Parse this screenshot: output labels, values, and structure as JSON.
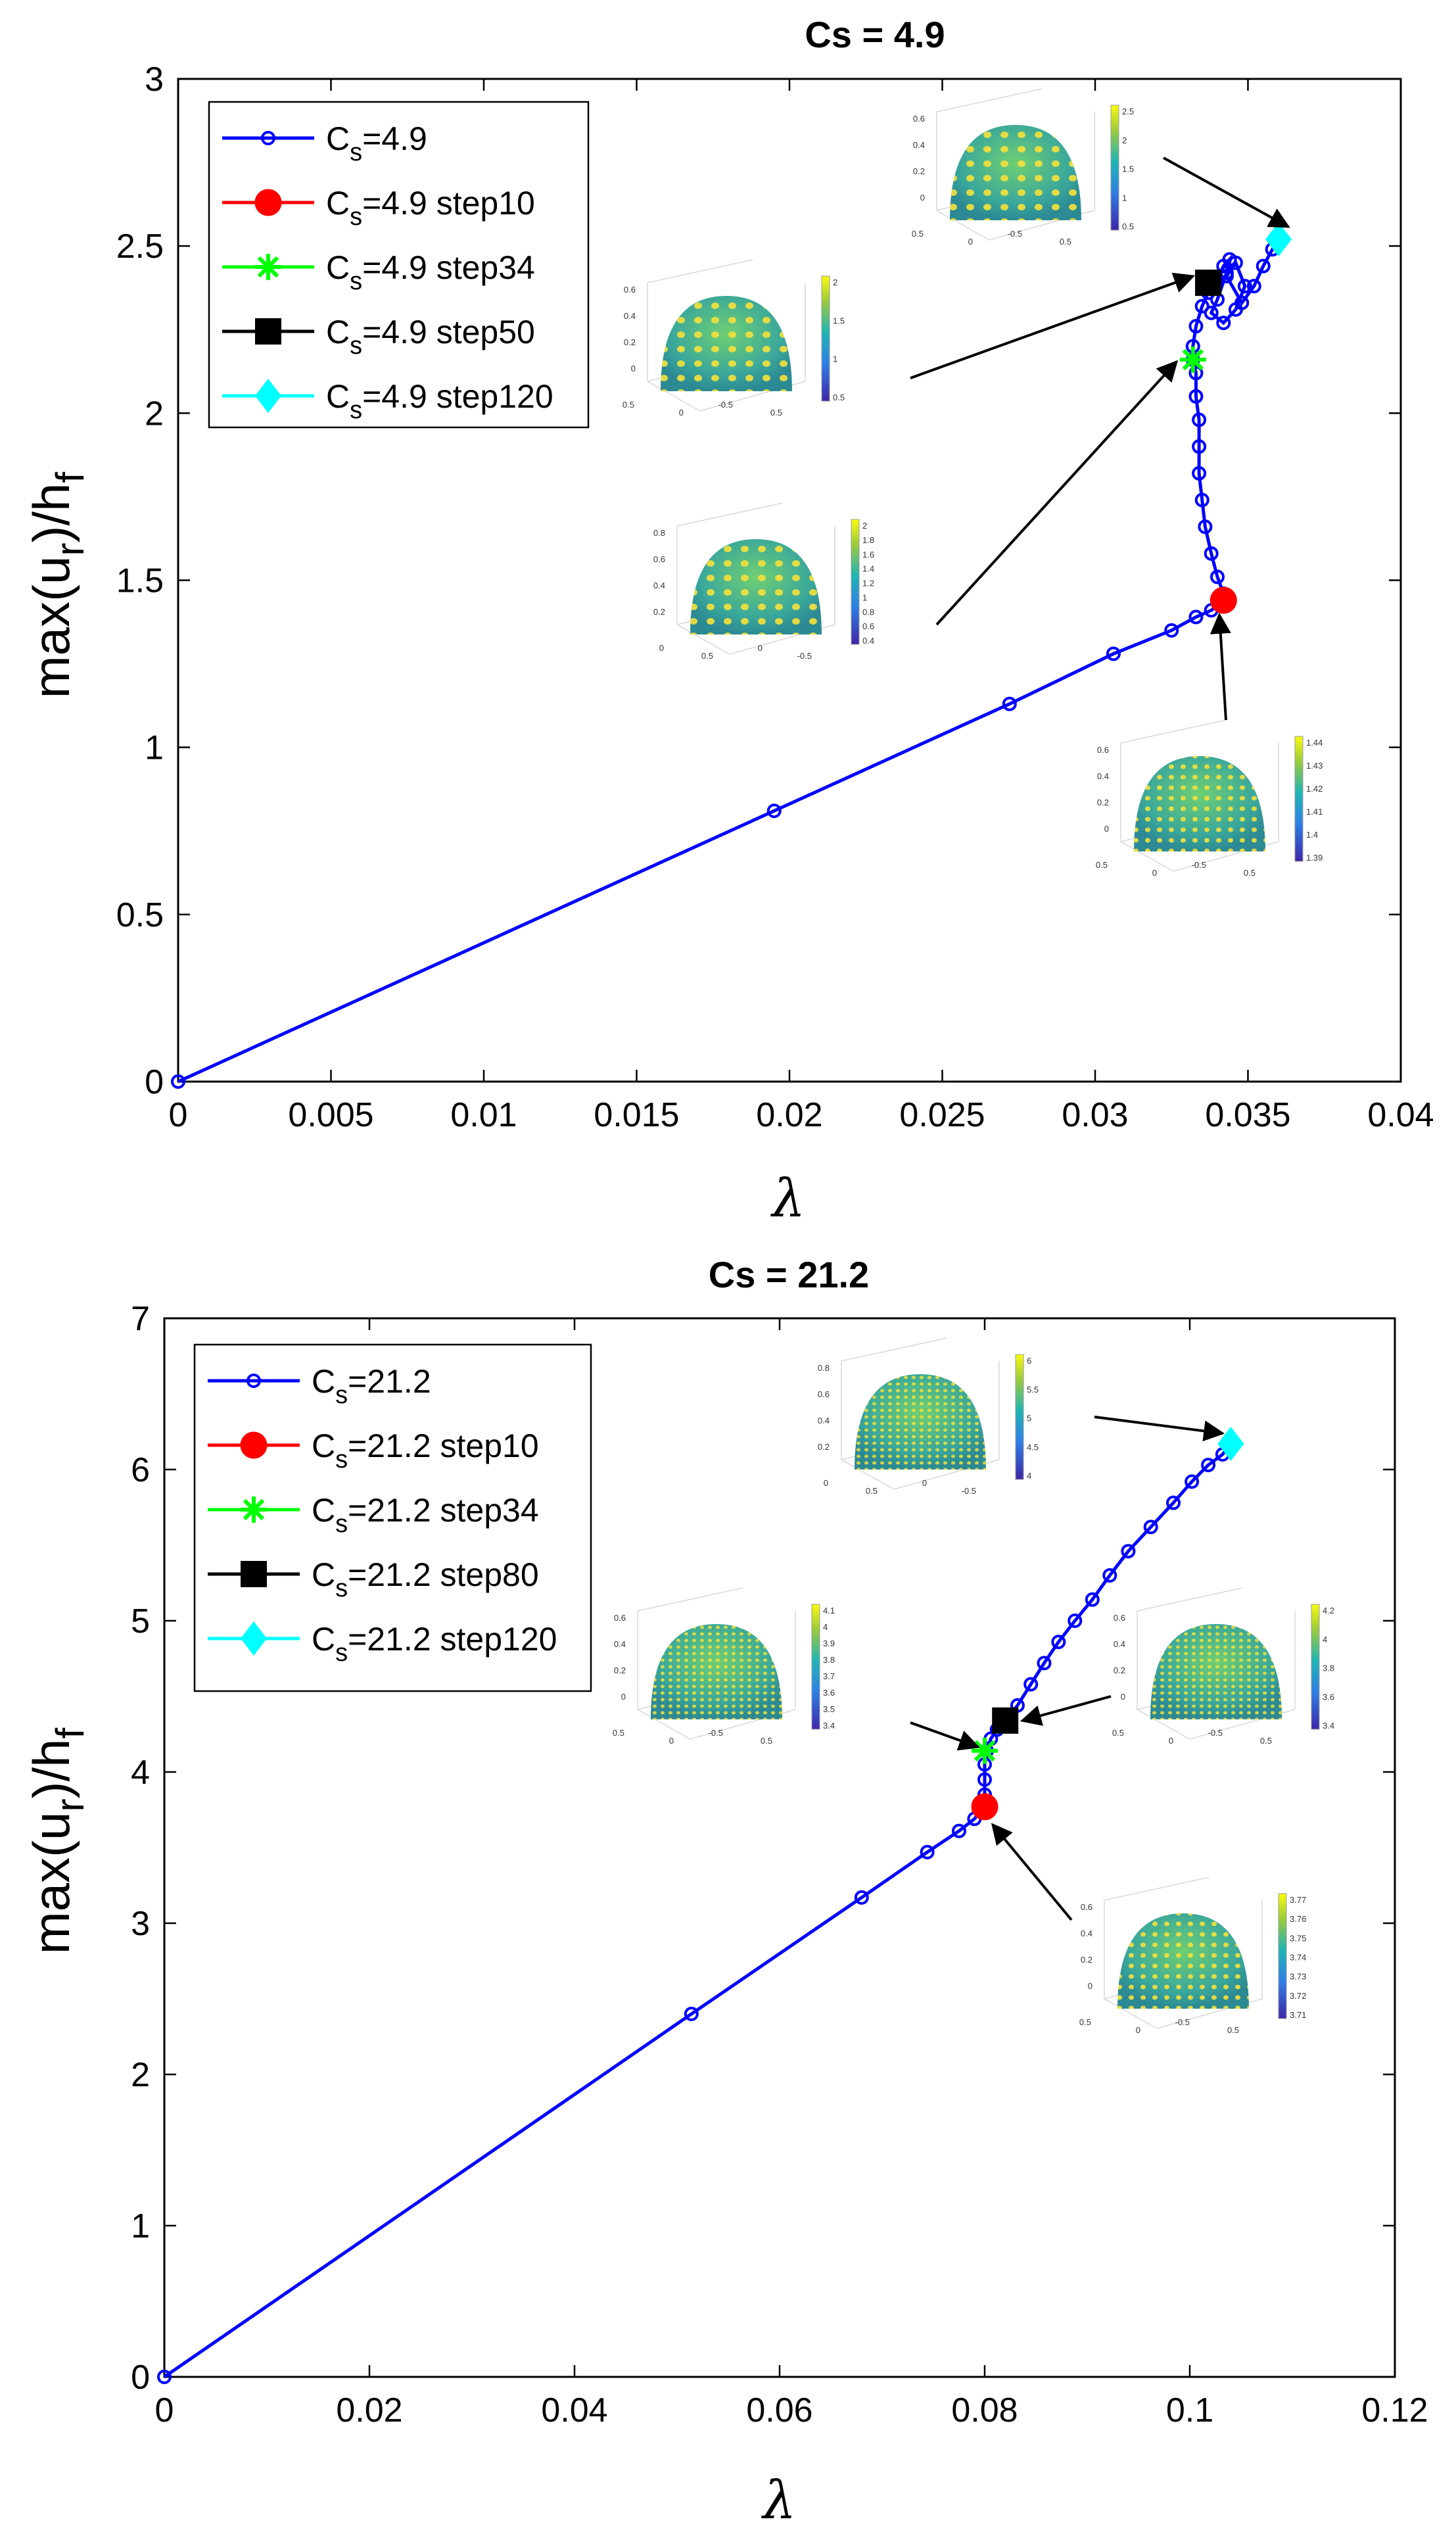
{
  "chart_data": [
    {
      "type": "line",
      "title": "Cs = 4.9",
      "xlabel": "λ",
      "ylabel_main": "max(u",
      "ylabel_sub1": "r",
      "ylabel_mid": ")/h",
      "ylabel_sub2": "f",
      "xlim": [
        0,
        0.04
      ],
      "ylim": [
        0,
        3
      ],
      "xticks": [
        0,
        0.005,
        0.01,
        0.015,
        0.02,
        0.025,
        0.03,
        0.035,
        0.04
      ],
      "xtick_labels": [
        "0",
        "0.005",
        "0.01",
        "0.015",
        "0.02",
        "0.025",
        "0.03",
        "0.035",
        "0.04"
      ],
      "yticks": [
        0,
        0.5,
        1,
        1.5,
        2,
        2.5,
        3
      ],
      "ytick_labels": [
        "0",
        "0.5",
        "1",
        "1.5",
        "2",
        "2.5",
        "3"
      ],
      "legend": [
        {
          "main": "C",
          "sub": "s",
          "rest": "=4.9",
          "marker": "o-line",
          "color": "#0000ff"
        },
        {
          "main": "C",
          "sub": "s",
          "rest": "=4.9 step10",
          "marker": "circle",
          "color": "#ff0000"
        },
        {
          "main": "C",
          "sub": "s",
          "rest": "=4.9 step34",
          "marker": "star",
          "color": "#00ff00"
        },
        {
          "main": "C",
          "sub": "s",
          "rest": "=4.9 step50",
          "marker": "square",
          "color": "#000000"
        },
        {
          "main": "C",
          "sub": "s",
          "rest": "=4.9 step120",
          "marker": "diamond",
          "color": "#00ffff"
        }
      ],
      "series": [
        {
          "name": "Cs=4.9",
          "color": "#0000ff",
          "x": [
            0,
            0.0195,
            0.0272,
            0.0306,
            0.0325,
            0.0333,
            0.0338,
            0.0341,
            0.0342,
            0.034,
            0.0338,
            0.0336,
            0.0335,
            0.0334,
            0.0334,
            0.0334,
            0.0333,
            0.0333,
            0.0332,
            0.0332,
            0.0333,
            0.0335,
            0.0337,
            0.034,
            0.0342,
            0.0344,
            0.0343,
            0.034,
            0.0338,
            0.0342,
            0.0346,
            0.0349,
            0.0346,
            0.0343,
            0.0348,
            0.0352,
            0.0355,
            0.0358,
            0.036
          ],
          "y": [
            0,
            0.81,
            1.13,
            1.28,
            1.35,
            1.39,
            1.41,
            1.43,
            1.46,
            1.51,
            1.58,
            1.66,
            1.74,
            1.82,
            1.9,
            1.98,
            2.05,
            2.12,
            2.16,
            2.2,
            2.26,
            2.32,
            2.36,
            2.4,
            2.44,
            2.46,
            2.42,
            2.34,
            2.3,
            2.27,
            2.31,
            2.38,
            2.45,
            2.41,
            2.33,
            2.38,
            2.44,
            2.49,
            2.52
          ]
        }
      ],
      "markers": [
        {
          "name": "step10",
          "x": 0.0342,
          "y": 1.44,
          "type": "circle",
          "color": "#ff0000"
        },
        {
          "name": "step34",
          "x": 0.0332,
          "y": 2.16,
          "type": "star",
          "color": "#00ff00"
        },
        {
          "name": "step50",
          "x": 0.0337,
          "y": 2.39,
          "type": "square",
          "color": "#000000"
        },
        {
          "name": "step120",
          "x": 0.036,
          "y": 2.52,
          "type": "diamond",
          "color": "#00ffff"
        }
      ],
      "insets": [
        {
          "ticks": [
            "0.6",
            "0.4",
            "0.2",
            "0",
            "0.5",
            "0",
            "-0.5",
            "0.5"
          ],
          "cbar": [
            "2.5",
            "2",
            "1.5",
            "1",
            "0.5"
          ]
        },
        {
          "ticks": [
            "0.6",
            "0.4",
            "0.2",
            "0",
            "0.5",
            "0",
            "-0.5",
            "0.5"
          ],
          "cbar": [
            "2",
            "1.5",
            "1",
            "0.5"
          ]
        },
        {
          "ticks": [
            "0.8",
            "0.6",
            "0.4",
            "0.2",
            "0",
            "0.5",
            "0",
            "-0.5"
          ],
          "cbar": [
            "2",
            "1.8",
            "1.6",
            "1.4",
            "1.2",
            "1",
            "0.8",
            "0.6",
            "0.4"
          ]
        },
        {
          "ticks": [
            "0.6",
            "0.4",
            "0.2",
            "0",
            "0.5",
            "0",
            "-0.5",
            "0.5"
          ],
          "cbar": [
            "1.44",
            "1.43",
            "1.42",
            "1.41",
            "1.4",
            "1.39"
          ]
        }
      ]
    },
    {
      "type": "line",
      "title": "Cs = 21.2",
      "xlabel": "λ",
      "ylabel_main": "max(u",
      "ylabel_sub1": "r",
      "ylabel_mid": ")/h",
      "ylabel_sub2": "f",
      "xlim": [
        0,
        0.12
      ],
      "ylim": [
        0,
        7
      ],
      "xticks": [
        0,
        0.02,
        0.04,
        0.06,
        0.08,
        0.1,
        0.12
      ],
      "xtick_labels": [
        "0",
        "0.02",
        "0.04",
        "0.06",
        "0.08",
        "0.1",
        "0.12"
      ],
      "yticks": [
        0,
        1,
        2,
        3,
        4,
        5,
        6,
        7
      ],
      "ytick_labels": [
        "0",
        "1",
        "2",
        "3",
        "4",
        "5",
        "6",
        "7"
      ],
      "legend": [
        {
          "main": "C",
          "sub": "s",
          "rest": "=21.2",
          "marker": "o-line",
          "color": "#0000ff"
        },
        {
          "main": "C",
          "sub": "s",
          "rest": "=21.2 step10",
          "marker": "circle",
          "color": "#ff0000"
        },
        {
          "main": "C",
          "sub": "s",
          "rest": "=21.2 step34",
          "marker": "star",
          "color": "#00ff00"
        },
        {
          "main": "C",
          "sub": "s",
          "rest": "=21.2 step80",
          "marker": "square",
          "color": "#000000"
        },
        {
          "main": "C",
          "sub": "s",
          "rest": "=21.2 step120",
          "marker": "diamond",
          "color": "#00ffff"
        }
      ],
      "series": [
        {
          "name": "Cs=21.2",
          "color": "#0000ff",
          "x": [
            0,
            0.0514,
            0.068,
            0.0744,
            0.0775,
            0.079,
            0.0798,
            0.08,
            0.08,
            0.08,
            0.0802,
            0.0806,
            0.0812,
            0.082,
            0.0832,
            0.0845,
            0.0858,
            0.0872,
            0.0888,
            0.0905,
            0.0922,
            0.094,
            0.0962,
            0.0984,
            0.1002,
            0.1018,
            0.1032,
            0.104
          ],
          "y": [
            0,
            2.4,
            3.17,
            3.47,
            3.61,
            3.69,
            3.76,
            3.85,
            3.95,
            4.05,
            4.14,
            4.22,
            4.28,
            4.34,
            4.44,
            4.58,
            4.72,
            4.86,
            5.0,
            5.14,
            5.3,
            5.46,
            5.62,
            5.78,
            5.92,
            6.03,
            6.1,
            6.17
          ]
        }
      ],
      "markers": [
        {
          "name": "step10",
          "x": 0.08,
          "y": 3.77,
          "type": "circle",
          "color": "#ff0000"
        },
        {
          "name": "step34",
          "x": 0.08,
          "y": 4.14,
          "type": "star",
          "color": "#00ff00"
        },
        {
          "name": "step80",
          "x": 0.082,
          "y": 4.34,
          "type": "square",
          "color": "#000000"
        },
        {
          "name": "step120",
          "x": 0.104,
          "y": 6.17,
          "type": "diamond",
          "color": "#00ffff"
        }
      ],
      "insets": [
        {
          "ticks": [
            "0.8",
            "0.6",
            "0.4",
            "0.2",
            "0",
            "0.5",
            "0",
            "-0.5"
          ],
          "cbar": [
            "6",
            "5.5",
            "5",
            "4.5",
            "4"
          ]
        },
        {
          "ticks": [
            "0.6",
            "0.4",
            "0.2",
            "0",
            "0.5",
            "0",
            "-0.5",
            "0.5"
          ],
          "cbar": [
            "4.1",
            "4",
            "3.9",
            "3.8",
            "3.7",
            "3.6",
            "3.5",
            "3.4"
          ]
        },
        {
          "ticks": [
            "0.6",
            "0.4",
            "0.2",
            "0",
            "0.5",
            "0",
            "-0.5",
            "0.5"
          ],
          "cbar": [
            "4.2",
            "4",
            "3.8",
            "3.6",
            "3.4"
          ]
        },
        {
          "ticks": [
            "0.6",
            "0.4",
            "0.2",
            "0",
            "0.5",
            "0",
            "-0.5",
            "0.5"
          ],
          "cbar": [
            "3.77",
            "3.76",
            "3.75",
            "3.74",
            "3.73",
            "3.72",
            "3.71"
          ]
        }
      ]
    }
  ]
}
